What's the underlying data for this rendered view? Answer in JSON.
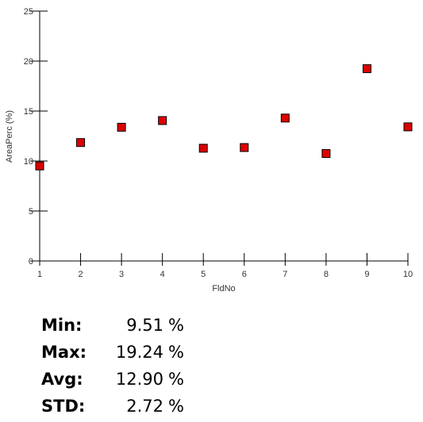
{
  "chart_data": {
    "type": "scatter",
    "x": [
      1,
      2,
      3,
      4,
      5,
      6,
      7,
      8,
      9,
      10
    ],
    "y": [
      9.51,
      11.85,
      13.38,
      14.05,
      11.28,
      11.35,
      14.3,
      10.75,
      19.24,
      13.42
    ],
    "xlabel": "FldNo",
    "ylabel": "AreaPerc (%)",
    "xlim": [
      1,
      10
    ],
    "ylim": [
      0,
      25
    ],
    "xticks": [
      1,
      2,
      3,
      4,
      5,
      6,
      7,
      8,
      9,
      10
    ],
    "yticks": [
      0,
      5,
      10,
      15,
      20,
      25
    ],
    "marker": "square",
    "marker_color": "#dd0000",
    "grid": false
  },
  "stats": [
    {
      "label": "Min:",
      "value": "9.51",
      "unit": "%"
    },
    {
      "label": "Max:",
      "value": "19.24",
      "unit": "%"
    },
    {
      "label": "Avg:",
      "value": "12.90",
      "unit": "%"
    },
    {
      "label": "STD:",
      "value": "2.72",
      "unit": "%"
    }
  ]
}
